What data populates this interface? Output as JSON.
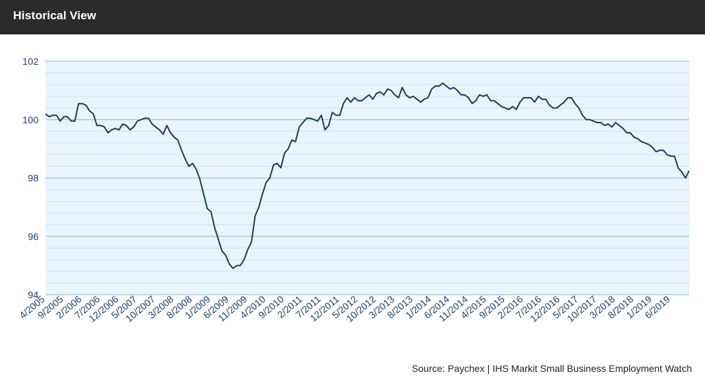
{
  "header": {
    "title": "Historical View"
  },
  "source": "Source: Paychex | IHS Markit Small Business Employment Watch",
  "colors": {
    "line": "#1b3a63",
    "plot_background": "#eaf4fc",
    "grid_major": "#9fc5e3",
    "grid_minor": "#c6ddef",
    "header_background": "#2d2a2a"
  },
  "chart_data": {
    "type": "line",
    "title": "Historical View",
    "xlabel": "",
    "ylabel": "",
    "ylim": [
      94,
      102
    ],
    "yticks": [
      94,
      96,
      98,
      100,
      102
    ],
    "grid": true,
    "x_tick_labels": [
      "4/2005",
      "9/2005",
      "2/2006",
      "7/2006",
      "12/2006",
      "5/2007",
      "10/2007",
      "3/2008",
      "8/2008",
      "1/2009",
      "6/2009",
      "11/2009",
      "4/2010",
      "9/2010",
      "2/2011",
      "7/2011",
      "12/2011",
      "5/2012",
      "10/2012",
      "3/2013",
      "8/2013",
      "1/2014",
      "6/2014",
      "11/2014",
      "4/2015",
      "9/2015",
      "2/2016",
      "7/2016",
      "12/2016",
      "5/2017",
      "10/2017",
      "3/2018",
      "8/2018",
      "1/2019",
      "6/2019"
    ],
    "series": [
      {
        "start": "4/2005",
        "frequency": "monthly",
        "values": [
          100.2,
          100.1,
          100.15,
          100.15,
          99.95,
          100.1,
          100.1,
          99.95,
          99.95,
          100.55,
          100.55,
          100.5,
          100.3,
          100.2,
          99.8,
          99.8,
          99.75,
          99.55,
          99.65,
          99.7,
          99.65,
          99.85,
          99.8,
          99.65,
          99.75,
          99.95,
          100.0,
          100.05,
          100.05,
          99.85,
          99.75,
          99.65,
          99.5,
          99.8,
          99.55,
          99.4,
          99.3,
          98.95,
          98.65,
          98.4,
          98.5,
          98.3,
          97.95,
          97.45,
          96.95,
          96.85,
          96.3,
          95.9,
          95.5,
          95.35,
          95.05,
          94.9,
          95.0,
          95.0,
          95.2,
          95.55,
          95.8,
          96.7,
          97.0,
          97.45,
          97.85,
          98.0,
          98.45,
          98.5,
          98.35,
          98.85,
          99.0,
          99.3,
          99.25,
          99.75,
          99.9,
          100.05,
          100.05,
          100.0,
          99.95,
          100.15,
          99.65,
          99.8,
          100.25,
          100.15,
          100.15,
          100.55,
          100.75,
          100.6,
          100.75,
          100.65,
          100.65,
          100.75,
          100.85,
          100.7,
          100.9,
          100.95,
          100.85,
          101.05,
          101.0,
          100.85,
          100.75,
          101.1,
          100.85,
          100.75,
          100.8,
          100.7,
          100.6,
          100.7,
          100.75,
          101.05,
          101.15,
          101.15,
          101.25,
          101.15,
          101.05,
          101.1,
          101.0,
          100.85,
          100.85,
          100.75,
          100.55,
          100.65,
          100.85,
          100.8,
          100.85,
          100.65,
          100.65,
          100.55,
          100.45,
          100.4,
          100.35,
          100.45,
          100.35,
          100.6,
          100.75,
          100.75,
          100.75,
          100.6,
          100.8,
          100.7,
          100.7,
          100.5,
          100.4,
          100.4,
          100.5,
          100.6,
          100.75,
          100.75,
          100.55,
          100.4,
          100.15,
          100.0,
          100.0,
          99.95,
          99.9,
          99.9,
          99.8,
          99.85,
          99.75,
          99.9,
          99.8,
          99.7,
          99.55,
          99.55,
          99.4,
          99.35,
          99.25,
          99.2,
          99.15,
          99.05,
          98.9,
          98.95,
          98.95,
          98.8,
          98.75,
          98.75,
          98.35,
          98.2,
          98.0,
          98.25
        ]
      }
    ]
  }
}
